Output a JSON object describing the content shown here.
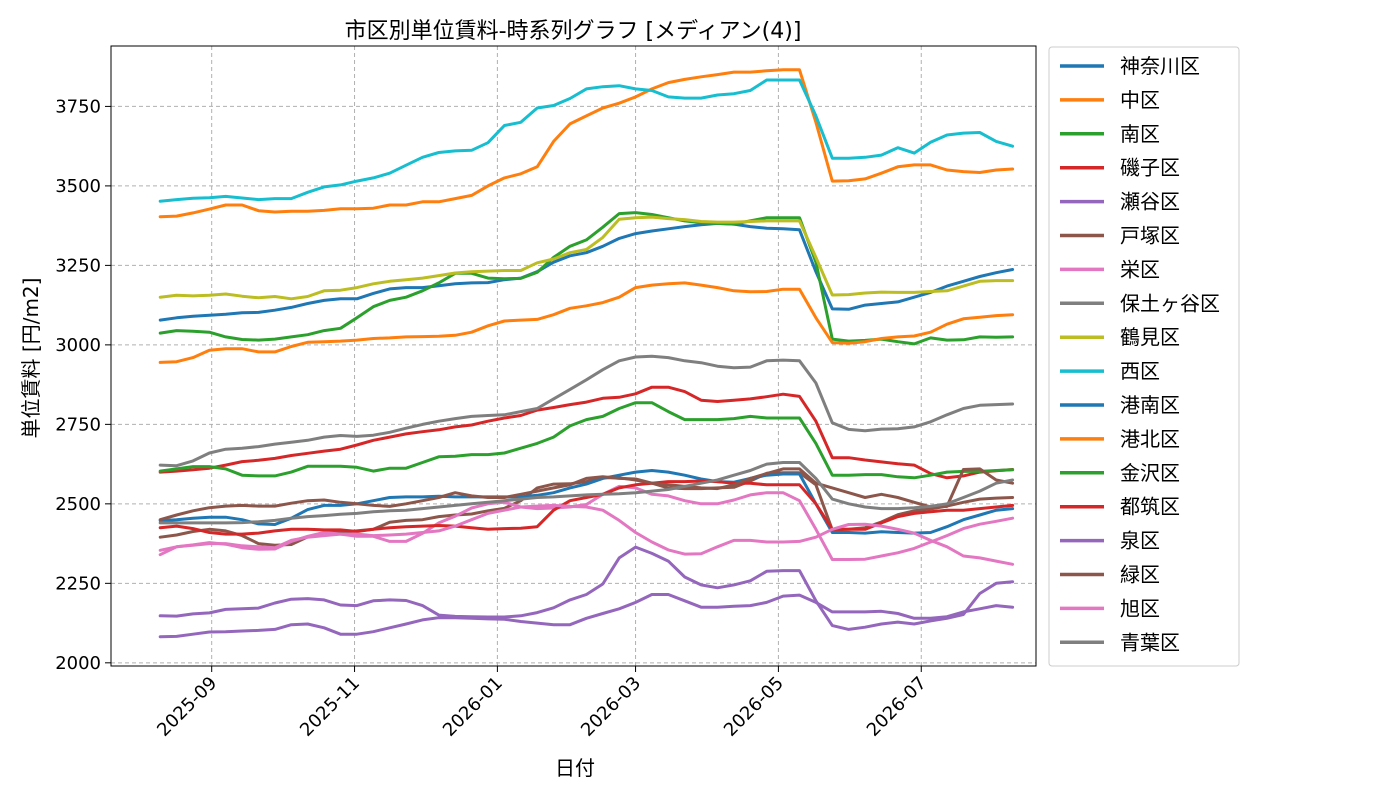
{
  "chart_data": {
    "type": "line",
    "title": "市区別単位賃料-時系列グラフ [メディアン(4)]",
    "xlabel": "日付",
    "ylabel": "単位賃料 [円/m2]",
    "ylim": [
      1990,
      3940
    ],
    "yticks": [
      2000,
      2250,
      2500,
      2750,
      3000,
      3250,
      3500,
      3750
    ],
    "xlim": [
      "2025-07-20",
      "2026-08-19"
    ],
    "xticks": [
      {
        "date": "2025-09-01",
        "label": "2025-09"
      },
      {
        "date": "2025-11-01",
        "label": "2025-11"
      },
      {
        "date": "2026-01-01",
        "label": "2026-01"
      },
      {
        "date": "2026-03-01",
        "label": "2026-03"
      },
      {
        "date": "2026-05-01",
        "label": "2026-05"
      },
      {
        "date": "2026-07-01",
        "label": "2026-07"
      }
    ],
    "grid": true,
    "legend_position": "outside-right",
    "x": [
      "2025-08-10",
      "2025-08-17",
      "2025-08-24",
      "2025-08-31",
      "2025-09-07",
      "2025-09-14",
      "2025-09-21",
      "2025-09-28",
      "2025-10-05",
      "2025-10-12",
      "2025-10-19",
      "2025-10-26",
      "2025-11-02",
      "2025-11-09",
      "2025-11-16",
      "2025-11-23",
      "2025-11-30",
      "2025-12-07",
      "2025-12-14",
      "2025-12-21",
      "2025-12-28",
      "2026-01-04",
      "2026-01-11",
      "2026-01-18",
      "2026-01-25",
      "2026-02-01",
      "2026-02-08",
      "2026-02-15",
      "2026-02-22",
      "2026-03-01",
      "2026-03-08",
      "2026-03-15",
      "2026-03-22",
      "2026-03-29",
      "2026-04-05",
      "2026-04-12",
      "2026-04-19",
      "2026-04-26",
      "2026-05-03",
      "2026-05-10",
      "2026-05-17",
      "2026-05-24",
      "2026-05-31",
      "2026-06-07",
      "2026-06-14",
      "2026-06-21",
      "2026-06-28",
      "2026-07-05",
      "2026-07-12",
      "2026-07-19",
      "2026-07-26",
      "2026-08-02",
      "2026-08-09"
    ],
    "series": [
      {
        "name": "神奈川区",
        "color": "#1f77b4",
        "values": [
          3078,
          3085,
          3090,
          3093,
          3096,
          3101,
          3102,
          3109,
          3118,
          3130,
          3140,
          3145,
          3145,
          3162,
          3176,
          3180,
          3180,
          3186,
          3192,
          3195,
          3196,
          3205,
          3210,
          3230,
          3260,
          3280,
          3290,
          3310,
          3335,
          3350,
          3358,
          3365,
          3372,
          3378,
          3382,
          3380,
          3372,
          3367,
          3365,
          3362,
          3230,
          3113,
          3112,
          3125,
          3130,
          3135,
          3150,
          3165,
          3185,
          3200,
          3215,
          3227,
          3237
        ]
      },
      {
        "name": "中区",
        "color": "#ff7f0e",
        "values": [
          3403,
          3405,
          3415,
          3427,
          3440,
          3440,
          3422,
          3418,
          3420,
          3420,
          3423,
          3428,
          3428,
          3430,
          3440,
          3440,
          3450,
          3450,
          3460,
          3470,
          3500,
          3525,
          3538,
          3560,
          3640,
          3695,
          3720,
          3745,
          3760,
          3780,
          3805,
          3825,
          3835,
          3843,
          3850,
          3858,
          3858,
          3862,
          3865,
          3865,
          3700,
          3515,
          3516,
          3522,
          3540,
          3560,
          3566,
          3566,
          3550,
          3545,
          3542,
          3550,
          3553
        ]
      },
      {
        "name": "南区",
        "color": "#2ca02c",
        "values": [
          3037,
          3045,
          3043,
          3040,
          3025,
          3017,
          3015,
          3018,
          3025,
          3032,
          3045,
          3052,
          3085,
          3120,
          3140,
          3150,
          3170,
          3195,
          3225,
          3225,
          3210,
          3208,
          3209,
          3228,
          3275,
          3310,
          3330,
          3370,
          3413,
          3416,
          3410,
          3400,
          3390,
          3384,
          3382,
          3380,
          3390,
          3400,
          3400,
          3400,
          3260,
          3018,
          3012,
          3014,
          3018,
          3010,
          3003,
          3022,
          3015,
          3016,
          3025,
          3024,
          3025
        ]
      },
      {
        "name": "磯子区",
        "color": "#d62728",
        "values": [
          2600,
          2603,
          2607,
          2612,
          2622,
          2633,
          2637,
          2643,
          2652,
          2659,
          2666,
          2672,
          2685,
          2700,
          2710,
          2720,
          2727,
          2733,
          2742,
          2748,
          2760,
          2770,
          2778,
          2795,
          2803,
          2812,
          2820,
          2832,
          2835,
          2846,
          2867,
          2867,
          2853,
          2826,
          2822,
          2826,
          2830,
          2837,
          2845,
          2838,
          2760,
          2645,
          2645,
          2638,
          2632,
          2626,
          2622,
          2595,
          2582,
          2588,
          2600,
          2604,
          2608
        ]
      },
      {
        "name": "瀬谷区",
        "color": "#9467bd",
        "values": [
          2148,
          2147,
          2154,
          2157,
          2168,
          2170,
          2172,
          2188,
          2200,
          2202,
          2198,
          2182,
          2180,
          2195,
          2198,
          2196,
          2180,
          2150,
          2146,
          2145,
          2144,
          2144,
          2148,
          2158,
          2173,
          2198,
          2215,
          2248,
          2330,
          2364,
          2344,
          2320,
          2270,
          2245,
          2236,
          2245,
          2258,
          2288,
          2290,
          2290,
          2195,
          2117,
          2105,
          2112,
          2122,
          2128,
          2122,
          2132,
          2140,
          2152,
          2218,
          2250,
          2255
        ]
      },
      {
        "name": "戸塚区",
        "color": "#8c564b",
        "values": [
          2395,
          2402,
          2413,
          2420,
          2415,
          2400,
          2375,
          2370,
          2372,
          2396,
          2410,
          2410,
          2415,
          2420,
          2442,
          2448,
          2450,
          2460,
          2465,
          2468,
          2478,
          2486,
          2510,
          2550,
          2562,
          2563,
          2570,
          2582,
          2582,
          2575,
          2565,
          2550,
          2548,
          2548,
          2550,
          2552,
          2572,
          2596,
          2598,
          2598,
          2560,
          2418,
          2420,
          2425,
          2443,
          2466,
          2478,
          2484,
          2493,
          2505,
          2515,
          2518,
          2520
        ]
      },
      {
        "name": "栄区",
        "color": "#e377c2",
        "values": [
          2354,
          2365,
          2371,
          2378,
          2373,
          2362,
          2357,
          2358,
          2382,
          2398,
          2410,
          2405,
          2398,
          2398,
          2382,
          2382,
          2407,
          2440,
          2461,
          2487,
          2500,
          2505,
          2490,
          2485,
          2487,
          2490,
          2498,
          2530,
          2555,
          2550,
          2530,
          2525,
          2510,
          2500,
          2500,
          2512,
          2528,
          2535,
          2535,
          2510,
          2420,
          2325,
          2325,
          2326,
          2336,
          2346,
          2360,
          2380,
          2400,
          2422,
          2436,
          2445,
          2455
        ]
      },
      {
        "name": "保土ヶ谷区",
        "color": "#7f7f7f",
        "values": [
          2622,
          2620,
          2635,
          2660,
          2672,
          2675,
          2680,
          2688,
          2694,
          2700,
          2710,
          2715,
          2712,
          2716,
          2725,
          2738,
          2750,
          2760,
          2768,
          2775,
          2778,
          2780,
          2790,
          2800,
          2830,
          2860,
          2890,
          2922,
          2950,
          2962,
          2964,
          2960,
          2950,
          2944,
          2933,
          2928,
          2930,
          2950,
          2952,
          2950,
          2880,
          2755,
          2734,
          2730,
          2735,
          2736,
          2742,
          2758,
          2780,
          2800,
          2810,
          2812,
          2814
        ]
      },
      {
        "name": "鶴見区",
        "color": "#bcbd22",
        "values": [
          3150,
          3156,
          3154,
          3156,
          3160,
          3153,
          3148,
          3152,
          3145,
          3152,
          3170,
          3172,
          3180,
          3192,
          3200,
          3205,
          3210,
          3218,
          3226,
          3230,
          3232,
          3234,
          3234,
          3258,
          3270,
          3290,
          3300,
          3338,
          3395,
          3400,
          3402,
          3397,
          3394,
          3388,
          3386,
          3386,
          3388,
          3390,
          3390,
          3390,
          3275,
          3157,
          3158,
          3163,
          3166,
          3165,
          3165,
          3168,
          3170,
          3185,
          3200,
          3202,
          3202
        ]
      },
      {
        "name": "西区",
        "color": "#17becf",
        "values": [
          3452,
          3457,
          3461,
          3463,
          3467,
          3462,
          3457,
          3460,
          3460,
          3480,
          3497,
          3503,
          3515,
          3525,
          3540,
          3565,
          3590,
          3605,
          3610,
          3612,
          3636,
          3690,
          3700,
          3745,
          3753,
          3775,
          3805,
          3812,
          3815,
          3805,
          3800,
          3780,
          3776,
          3776,
          3786,
          3790,
          3800,
          3833,
          3833,
          3833,
          3720,
          3587,
          3587,
          3590,
          3597,
          3620,
          3603,
          3637,
          3660,
          3666,
          3668,
          3640,
          3625
        ]
      },
      {
        "name": "港南区",
        "color": "#1f77b4",
        "values": [
          2447,
          2450,
          2455,
          2458,
          2458,
          2450,
          2437,
          2435,
          2455,
          2482,
          2495,
          2495,
          2500,
          2510,
          2520,
          2522,
          2522,
          2524,
          2522,
          2522,
          2522,
          2522,
          2522,
          2527,
          2535,
          2550,
          2562,
          2580,
          2590,
          2600,
          2605,
          2600,
          2590,
          2578,
          2570,
          2568,
          2580,
          2590,
          2594,
          2594,
          2500,
          2410,
          2410,
          2408,
          2412,
          2410,
          2408,
          2410,
          2428,
          2450,
          2465,
          2480,
          2485
        ]
      },
      {
        "name": "港北区",
        "color": "#ff7f0e",
        "values": [
          2945,
          2947,
          2960,
          2983,
          2988,
          2988,
          2978,
          2978,
          2995,
          3008,
          3010,
          3012,
          3015,
          3020,
          3022,
          3025,
          3026,
          3027,
          3030,
          3040,
          3060,
          3075,
          3078,
          3080,
          3095,
          3115,
          3123,
          3133,
          3150,
          3180,
          3188,
          3192,
          3195,
          3188,
          3180,
          3170,
          3167,
          3168,
          3175,
          3175,
          3085,
          3007,
          3005,
          3010,
          3020,
          3025,
          3028,
          3040,
          3065,
          3082,
          3087,
          3092,
          3095
        ]
      },
      {
        "name": "金沢区",
        "color": "#2ca02c",
        "values": [
          2603,
          2610,
          2617,
          2617,
          2610,
          2590,
          2588,
          2588,
          2600,
          2618,
          2618,
          2618,
          2615,
          2603,
          2612,
          2612,
          2630,
          2648,
          2650,
          2655,
          2655,
          2660,
          2675,
          2690,
          2710,
          2745,
          2765,
          2775,
          2800,
          2818,
          2818,
          2790,
          2765,
          2765,
          2765,
          2768,
          2775,
          2770,
          2770,
          2770,
          2690,
          2590,
          2590,
          2592,
          2592,
          2585,
          2582,
          2590,
          2600,
          2602,
          2602,
          2605,
          2607
        ]
      },
      {
        "name": "都筑区",
        "color": "#d62728",
        "values": [
          2425,
          2430,
          2422,
          2410,
          2405,
          2405,
          2408,
          2415,
          2420,
          2420,
          2418,
          2418,
          2413,
          2420,
          2425,
          2428,
          2430,
          2432,
          2430,
          2425,
          2420,
          2422,
          2423,
          2428,
          2480,
          2510,
          2520,
          2530,
          2550,
          2560,
          2565,
          2570,
          2570,
          2572,
          2570,
          2565,
          2565,
          2560,
          2560,
          2560,
          2500,
          2420,
          2420,
          2420,
          2440,
          2460,
          2470,
          2475,
          2480,
          2480,
          2485,
          2490,
          2495
        ]
      },
      {
        "name": "泉区",
        "color": "#9467bd",
        "values": [
          2082,
          2083,
          2090,
          2097,
          2098,
          2100,
          2102,
          2105,
          2120,
          2122,
          2110,
          2090,
          2090,
          2098,
          2110,
          2122,
          2135,
          2142,
          2142,
          2140,
          2138,
          2137,
          2130,
          2125,
          2120,
          2120,
          2140,
          2155,
          2170,
          2190,
          2215,
          2215,
          2195,
          2175,
          2175,
          2178,
          2180,
          2190,
          2210,
          2213,
          2190,
          2160,
          2160,
          2160,
          2162,
          2155,
          2140,
          2140,
          2145,
          2160,
          2170,
          2180,
          2175
        ]
      },
      {
        "name": "緑区",
        "color": "#8c564b",
        "values": [
          2450,
          2465,
          2478,
          2488,
          2493,
          2495,
          2493,
          2493,
          2502,
          2510,
          2512,
          2505,
          2500,
          2495,
          2492,
          2500,
          2510,
          2520,
          2535,
          2525,
          2520,
          2520,
          2530,
          2540,
          2550,
          2560,
          2580,
          2585,
          2580,
          2578,
          2565,
          2560,
          2555,
          2550,
          2548,
          2560,
          2580,
          2595,
          2610,
          2610,
          2565,
          2550,
          2535,
          2520,
          2530,
          2520,
          2505,
          2490,
          2492,
          2608,
          2610,
          2575,
          2565
        ]
      },
      {
        "name": "旭区",
        "color": "#e377c2",
        "values": [
          2340,
          2365,
          2370,
          2375,
          2375,
          2368,
          2365,
          2362,
          2385,
          2395,
          2400,
          2405,
          2405,
          2400,
          2402,
          2405,
          2410,
          2415,
          2430,
          2450,
          2470,
          2480,
          2490,
          2493,
          2495,
          2492,
          2490,
          2480,
          2448,
          2410,
          2380,
          2355,
          2342,
          2343,
          2365,
          2385,
          2385,
          2380,
          2380,
          2382,
          2395,
          2420,
          2435,
          2436,
          2430,
          2420,
          2408,
          2385,
          2365,
          2336,
          2330,
          2320,
          2310
        ]
      },
      {
        "name": "青葉区",
        "color": "#7f7f7f",
        "values": [
          2440,
          2440,
          2440,
          2440,
          2440,
          2441,
          2444,
          2448,
          2455,
          2460,
          2463,
          2467,
          2470,
          2475,
          2478,
          2480,
          2485,
          2490,
          2495,
          2500,
          2505,
          2510,
          2515,
          2520,
          2522,
          2525,
          2528,
          2530,
          2532,
          2535,
          2540,
          2545,
          2555,
          2565,
          2575,
          2590,
          2605,
          2625,
          2630,
          2630,
          2580,
          2515,
          2500,
          2490,
          2485,
          2485,
          2488,
          2492,
          2500,
          2520,
          2540,
          2565,
          2575
        ]
      }
    ]
  }
}
